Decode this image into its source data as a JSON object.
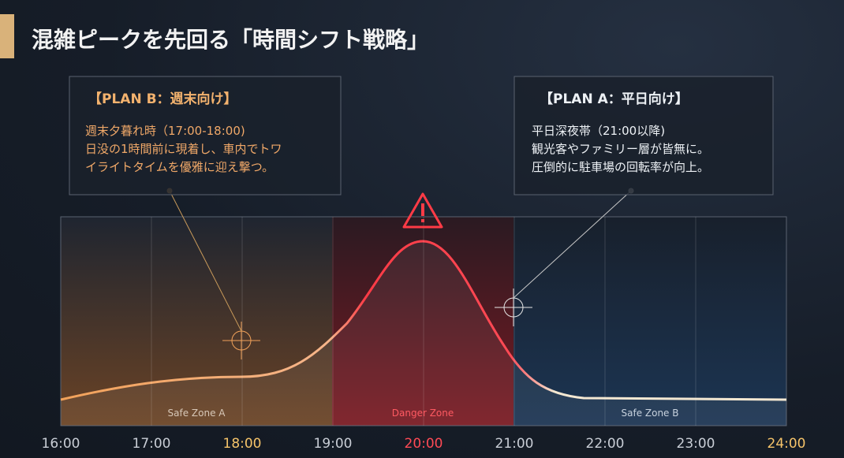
{
  "title": "混雑ピークを先回る「時間シフト戦略」",
  "plans": [
    {
      "heading": "【PLAN B：週末向け】",
      "lines": [
        "週末夕暮れ時（17:00-18:00)",
        "日没の1時間前に現着し、車内でトワ",
        "イライトタイムを優雅に迎え撃つ。"
      ]
    },
    {
      "heading": "【PLAN A：平日向け】",
      "lines": [
        "平日深夜帯（21:00以降)",
        "観光客やファミリー層が皆無に。",
        "圧倒的に駐車場の回転率が向上。"
      ]
    }
  ],
  "zones": [
    "Safe Zone A",
    "Danger Zone",
    "Safe Zone B"
  ],
  "x_labels": [
    "16:00",
    "17:00",
    "18:00",
    "19:00",
    "20:00",
    "21:00",
    "22:00",
    "23:00",
    "24:00"
  ]
}
